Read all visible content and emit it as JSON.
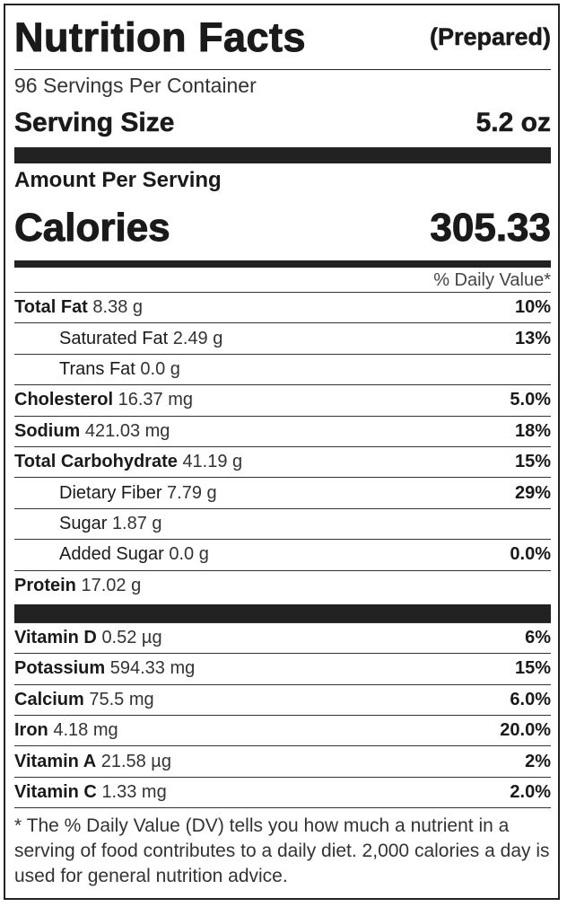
{
  "header": {
    "title": "Nutrition Facts",
    "subtitle": "(Prepared)"
  },
  "servings": "96 Servings Per Container",
  "serving_size": {
    "label": "Serving Size",
    "value": "5.2 oz"
  },
  "amount_per_serving": "Amount Per Serving",
  "calories": {
    "label": "Calories",
    "value": "305.33"
  },
  "dv_header": "% Daily Value*",
  "nutrients": [
    {
      "name": "Total Fat",
      "amount": "8.38 g",
      "dv": "10%",
      "indent": false
    },
    {
      "name": "Saturated Fat",
      "amount": "2.49 g",
      "dv": "13%",
      "indent": true
    },
    {
      "name": "Trans Fat",
      "amount": "0.0 g",
      "dv": null,
      "indent": true
    },
    {
      "name": "Cholesterol",
      "amount": "16.37 mg",
      "dv": "5.0%",
      "indent": false
    },
    {
      "name": "Sodium",
      "amount": "421.03 mg",
      "dv": "18%",
      "indent": false
    },
    {
      "name": "Total Carbohydrate",
      "amount": "41.19 g",
      "dv": "15%",
      "indent": false
    },
    {
      "name": "Dietary Fiber",
      "amount": "7.79 g",
      "dv": "29%",
      "indent": true
    },
    {
      "name": "Sugar",
      "amount": "1.87 g",
      "dv": null,
      "indent": true
    },
    {
      "name": "Added Sugar",
      "amount": "0.0 g",
      "dv": "0.0%",
      "indent": true
    },
    {
      "name": "Protein",
      "amount": "17.02 g",
      "dv": null,
      "indent": false
    }
  ],
  "vitamins": [
    {
      "name": "Vitamin D",
      "amount": "0.52 µg",
      "dv": "6%"
    },
    {
      "name": "Potassium",
      "amount": "594.33 mg",
      "dv": "15%"
    },
    {
      "name": "Calcium",
      "amount": "75.5 mg",
      "dv": "6.0%"
    },
    {
      "name": "Iron",
      "amount": "4.18 mg",
      "dv": "20.0%"
    },
    {
      "name": "Vitamin A",
      "amount": "21.58 µg",
      "dv": "2%"
    },
    {
      "name": "Vitamin C",
      "amount": "1.33 mg",
      "dv": "2.0%"
    }
  ],
  "footnote": "* The % Daily Value (DV) tells you how much a nutrient in a serving of food contributes to a daily diet. 2,000 calories a day is used for general nutrition advice."
}
